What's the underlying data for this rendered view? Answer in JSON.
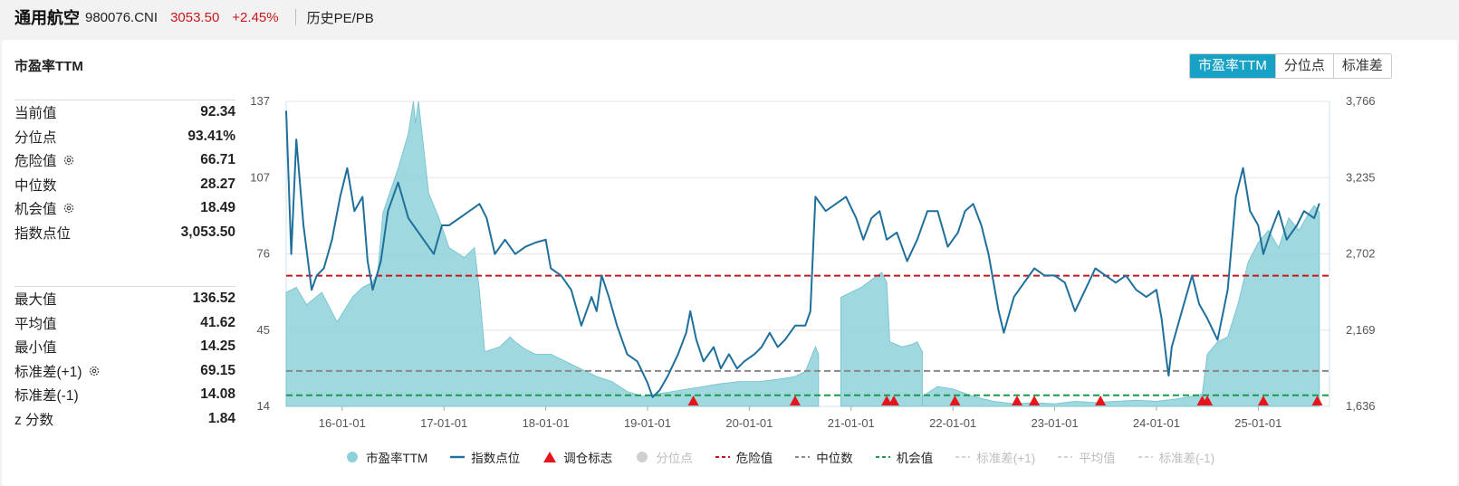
{
  "header": {
    "name": "通用航空",
    "code": "980076.CNI",
    "price": "3053.50",
    "change": "+2.45%",
    "tab": "历史PE/PB"
  },
  "card": {
    "title": "市盈率TTM",
    "buttons": [
      {
        "label": "市盈率TTM",
        "active": true
      },
      {
        "label": "分位点",
        "active": false
      },
      {
        "label": "标准差",
        "active": false
      }
    ]
  },
  "stats_top": [
    {
      "label": "当前值",
      "value": "92.34",
      "gear": false
    },
    {
      "label": "分位点",
      "value": "93.41%",
      "gear": false
    },
    {
      "label": "危险值",
      "value": "66.71",
      "gear": true
    },
    {
      "label": "中位数",
      "value": "28.27",
      "gear": false
    },
    {
      "label": "机会值",
      "value": "18.49",
      "gear": true
    },
    {
      "label": "指数点位",
      "value": "3,053.50",
      "gear": false
    }
  ],
  "stats_bottom": [
    {
      "label": "最大值",
      "value": "136.52",
      "gear": false
    },
    {
      "label": "平均值",
      "value": "41.62",
      "gear": false
    },
    {
      "label": "最小值",
      "value": "14.25",
      "gear": false
    },
    {
      "label": "标准差(+1)",
      "value": "69.15",
      "gear": true
    },
    {
      "label": "标准差(-1)",
      "value": "14.08",
      "gear": false
    },
    {
      "label": "z 分数",
      "value": "1.84",
      "gear": false
    }
  ],
  "colors": {
    "area": "#8fd1da",
    "index_line": "#1f6f9b",
    "danger": "#c8161d",
    "median": "#888888",
    "opportunity": "#1a9a4a",
    "marker": "#e8141c",
    "active_button": "#17a1c5"
  },
  "chart_data": {
    "type": "area",
    "x_ticks": [
      "16-01-01",
      "17-01-01",
      "18-01-01",
      "19-01-01",
      "20-01-01",
      "21-01-01",
      "22-01-01",
      "23-01-01",
      "24-01-01",
      "25-01-01"
    ],
    "x_range": [
      2015.45,
      2025.7
    ],
    "y_left": {
      "range": [
        14,
        137
      ],
      "ticks": [
        "137",
        "107",
        "76",
        "45",
        "14"
      ]
    },
    "y_right": {
      "range": [
        1636,
        3766
      ],
      "ticks": [
        "3,766",
        "3,235",
        "2,702",
        "2,169",
        "1,636"
      ]
    },
    "reference_lines": [
      {
        "name": "危险值",
        "value": 66.71
      },
      {
        "name": "中位数",
        "value": 28.27
      },
      {
        "name": "机会值",
        "value": 18.49
      }
    ],
    "series": [
      {
        "name": "市盈率TTM",
        "axis": "left",
        "kind": "area",
        "segments": [
          [
            [
              2015.45,
              60
            ],
            [
              2015.55,
              62
            ],
            [
              2015.65,
              55
            ],
            [
              2015.8,
              60
            ],
            [
              2015.95,
              48
            ],
            [
              2016.1,
              58
            ],
            [
              2016.2,
              62
            ],
            [
              2016.3,
              64
            ],
            [
              2016.35,
              68
            ],
            [
              2016.4,
              92
            ],
            [
              2016.55,
              110
            ],
            [
              2016.65,
              124
            ],
            [
              2016.7,
              137
            ],
            [
              2016.72,
              128
            ],
            [
              2016.75,
              137
            ],
            [
              2016.85,
              100
            ],
            [
              2016.95,
              90
            ],
            [
              2017.05,
              78
            ],
            [
              2017.2,
              74
            ],
            [
              2017.3,
              78
            ],
            [
              2017.35,
              60
            ],
            [
              2017.4,
              36
            ],
            [
              2017.55,
              38
            ],
            [
              2017.65,
              42
            ],
            [
              2017.7,
              40
            ],
            [
              2017.8,
              37
            ],
            [
              2017.9,
              35
            ],
            [
              2018.05,
              35
            ],
            [
              2018.15,
              33
            ],
            [
              2018.3,
              30
            ],
            [
              2018.5,
              26
            ],
            [
              2018.65,
              24
            ],
            [
              2018.8,
              20
            ],
            [
              2018.95,
              18
            ],
            [
              2019.1,
              19
            ],
            [
              2019.25,
              20
            ],
            [
              2019.4,
              21
            ],
            [
              2019.55,
              22
            ],
            [
              2019.7,
              23
            ],
            [
              2019.9,
              24
            ],
            [
              2020.1,
              24
            ],
            [
              2020.3,
              25
            ],
            [
              2020.45,
              26
            ],
            [
              2020.55,
              28
            ],
            [
              2020.65,
              38
            ],
            [
              2020.68,
              35
            ]
          ],
          [
            [
              2020.9,
              58
            ],
            [
              2021.0,
              60
            ],
            [
              2021.1,
              62
            ],
            [
              2021.2,
              65
            ],
            [
              2021.3,
              68
            ],
            [
              2021.35,
              64
            ],
            [
              2021.38,
              40
            ],
            [
              2021.5,
              38
            ],
            [
              2021.6,
              39
            ],
            [
              2021.65,
              40
            ],
            [
              2021.7,
              36
            ]
          ],
          [
            [
              2021.7,
              18
            ],
            [
              2021.85,
              22
            ],
            [
              2022.0,
              21
            ],
            [
              2022.2,
              18
            ],
            [
              2022.4,
              16
            ],
            [
              2022.6,
              15
            ],
            [
              2022.8,
              15.5
            ],
            [
              2023.0,
              15
            ],
            [
              2023.2,
              16
            ],
            [
              2023.4,
              15.5
            ],
            [
              2023.6,
              16
            ],
            [
              2023.8,
              16.5
            ],
            [
              2024.0,
              16
            ],
            [
              2024.2,
              17
            ],
            [
              2024.35,
              18
            ],
            [
              2024.45,
              19
            ],
            [
              2024.5,
              35
            ],
            [
              2024.6,
              40
            ],
            [
              2024.7,
              42
            ],
            [
              2024.8,
              55
            ],
            [
              2024.9,
              72
            ],
            [
              2025.0,
              80
            ],
            [
              2025.1,
              85
            ],
            [
              2025.2,
              78
            ],
            [
              2025.3,
              90
            ],
            [
              2025.4,
              85
            ],
            [
              2025.5,
              92
            ],
            [
              2025.55,
              95
            ],
            [
              2025.6,
              92.34
            ]
          ]
        ]
      },
      {
        "name": "指数点位",
        "axis": "right",
        "kind": "line",
        "values": [
          [
            2015.45,
            3700
          ],
          [
            2015.5,
            2700
          ],
          [
            2015.55,
            3500
          ],
          [
            2015.62,
            2900
          ],
          [
            2015.7,
            2450
          ],
          [
            2015.75,
            2550
          ],
          [
            2015.82,
            2600
          ],
          [
            2015.9,
            2800
          ],
          [
            2015.98,
            3100
          ],
          [
            2016.05,
            3300
          ],
          [
            2016.12,
            3000
          ],
          [
            2016.2,
            3100
          ],
          [
            2016.25,
            2650
          ],
          [
            2016.3,
            2450
          ],
          [
            2016.38,
            2650
          ],
          [
            2016.45,
            3000
          ],
          [
            2016.55,
            3200
          ],
          [
            2016.65,
            2950
          ],
          [
            2016.7,
            2900
          ],
          [
            2016.8,
            2800
          ],
          [
            2016.9,
            2700
          ],
          [
            2016.98,
            2900
          ],
          [
            2017.05,
            2900
          ],
          [
            2017.15,
            2950
          ],
          [
            2017.25,
            3000
          ],
          [
            2017.35,
            3050
          ],
          [
            2017.42,
            2950
          ],
          [
            2017.5,
            2700
          ],
          [
            2017.6,
            2800
          ],
          [
            2017.7,
            2700
          ],
          [
            2017.8,
            2750
          ],
          [
            2017.9,
            2780
          ],
          [
            2018.0,
            2800
          ],
          [
            2018.05,
            2600
          ],
          [
            2018.15,
            2550
          ],
          [
            2018.25,
            2450
          ],
          [
            2018.35,
            2200
          ],
          [
            2018.45,
            2400
          ],
          [
            2018.5,
            2300
          ],
          [
            2018.55,
            2550
          ],
          [
            2018.62,
            2400
          ],
          [
            2018.7,
            2200
          ],
          [
            2018.8,
            2000
          ],
          [
            2018.9,
            1950
          ],
          [
            2019.0,
            1800
          ],
          [
            2019.05,
            1700
          ],
          [
            2019.12,
            1750
          ],
          [
            2019.2,
            1850
          ],
          [
            2019.3,
            2000
          ],
          [
            2019.38,
            2150
          ],
          [
            2019.42,
            2300
          ],
          [
            2019.48,
            2100
          ],
          [
            2019.55,
            1950
          ],
          [
            2019.65,
            2050
          ],
          [
            2019.72,
            1900
          ],
          [
            2019.8,
            2000
          ],
          [
            2019.88,
            1900
          ],
          [
            2019.95,
            1950
          ],
          [
            2020.05,
            2000
          ],
          [
            2020.12,
            2050
          ],
          [
            2020.2,
            2150
          ],
          [
            2020.28,
            2050
          ],
          [
            2020.35,
            2100
          ],
          [
            2020.45,
            2200
          ],
          [
            2020.55,
            2200
          ],
          [
            2020.6,
            2300
          ],
          [
            2020.65,
            3100
          ],
          [
            2020.75,
            3000
          ],
          [
            2020.85,
            3050
          ],
          [
            2020.95,
            3100
          ],
          [
            2021.05,
            2950
          ],
          [
            2021.12,
            2800
          ],
          [
            2021.2,
            2950
          ],
          [
            2021.28,
            3000
          ],
          [
            2021.35,
            2800
          ],
          [
            2021.45,
            2850
          ],
          [
            2021.55,
            2650
          ],
          [
            2021.65,
            2800
          ],
          [
            2021.75,
            3000
          ],
          [
            2021.85,
            3000
          ],
          [
            2021.95,
            2750
          ],
          [
            2022.05,
            2850
          ],
          [
            2022.12,
            3000
          ],
          [
            2022.2,
            3050
          ],
          [
            2022.28,
            2900
          ],
          [
            2022.35,
            2700
          ],
          [
            2022.45,
            2300
          ],
          [
            2022.5,
            2150
          ],
          [
            2022.6,
            2400
          ],
          [
            2022.7,
            2500
          ],
          [
            2022.8,
            2600
          ],
          [
            2022.9,
            2550
          ],
          [
            2023.0,
            2550
          ],
          [
            2023.1,
            2500
          ],
          [
            2023.2,
            2300
          ],
          [
            2023.3,
            2450
          ],
          [
            2023.4,
            2600
          ],
          [
            2023.5,
            2550
          ],
          [
            2023.6,
            2500
          ],
          [
            2023.7,
            2550
          ],
          [
            2023.8,
            2450
          ],
          [
            2023.9,
            2400
          ],
          [
            2024.0,
            2450
          ],
          [
            2024.05,
            2250
          ],
          [
            2024.1,
            1950
          ],
          [
            2024.12,
            1850
          ],
          [
            2024.15,
            2050
          ],
          [
            2024.25,
            2300
          ],
          [
            2024.35,
            2550
          ],
          [
            2024.42,
            2350
          ],
          [
            2024.5,
            2250
          ],
          [
            2024.6,
            2100
          ],
          [
            2024.7,
            2450
          ],
          [
            2024.78,
            3100
          ],
          [
            2024.85,
            3300
          ],
          [
            2024.92,
            3000
          ],
          [
            2025.0,
            2900
          ],
          [
            2025.05,
            2700
          ],
          [
            2025.12,
            2850
          ],
          [
            2025.2,
            3000
          ],
          [
            2025.28,
            2800
          ],
          [
            2025.38,
            2900
          ],
          [
            2025.45,
            3000
          ],
          [
            2025.55,
            2950
          ],
          [
            2025.6,
            3053.5
          ]
        ]
      }
    ],
    "rebalance_markers_x": [
      2019.45,
      2020.45,
      2021.35,
      2021.42,
      2022.02,
      2022.63,
      2022.8,
      2023.45,
      2024.45,
      2024.5,
      2025.05,
      2025.58
    ],
    "legend": [
      {
        "label": "市盈率TTM",
        "symbol": "area-dot",
        "color": "#8fd1da",
        "dim": false
      },
      {
        "label": "指数点位",
        "symbol": "line",
        "color": "#1f6f9b",
        "dim": false
      },
      {
        "label": "调仓标志",
        "symbol": "triangle",
        "color": "#e8141c",
        "dim": false
      },
      {
        "label": "分位点",
        "symbol": "dot",
        "color": "#cfcfcf",
        "dim": true
      },
      {
        "label": "危险值",
        "symbol": "dash",
        "color": "#c8161d",
        "dim": false
      },
      {
        "label": "中位数",
        "symbol": "dash",
        "color": "#888888",
        "dim": false
      },
      {
        "label": "机会值",
        "symbol": "dash",
        "color": "#1a9a4a",
        "dim": false
      },
      {
        "label": "标准差(+1)",
        "symbol": "dash",
        "color": "#d5d5d5",
        "dim": true
      },
      {
        "label": "平均值",
        "symbol": "dash",
        "color": "#d5d5d5",
        "dim": true
      },
      {
        "label": "标准差(-1)",
        "symbol": "dash",
        "color": "#d5d5d5",
        "dim": true
      }
    ]
  }
}
